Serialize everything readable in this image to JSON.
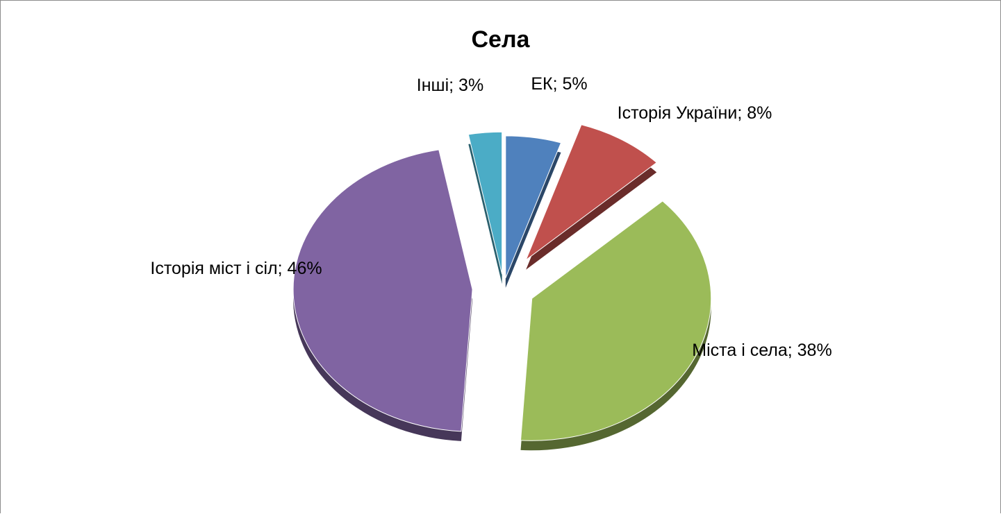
{
  "chart_data": {
    "type": "pie",
    "title": "Села",
    "categories": [
      "ЕК",
      "Історія України",
      "Міста і села",
      "Історія міст і сіл",
      "Інші"
    ],
    "values": [
      5,
      8,
      38,
      46,
      3
    ],
    "value_labels": [
      "ЕК; 5%",
      "Історія України; 8%",
      "Міста і села; 38%",
      "Історія міст і сіл; 46%",
      "Інші; 3%"
    ],
    "colors": [
      "#4f81bd",
      "#c0504d",
      "#9bbb59",
      "#8064a2",
      "#4bacc6"
    ]
  }
}
